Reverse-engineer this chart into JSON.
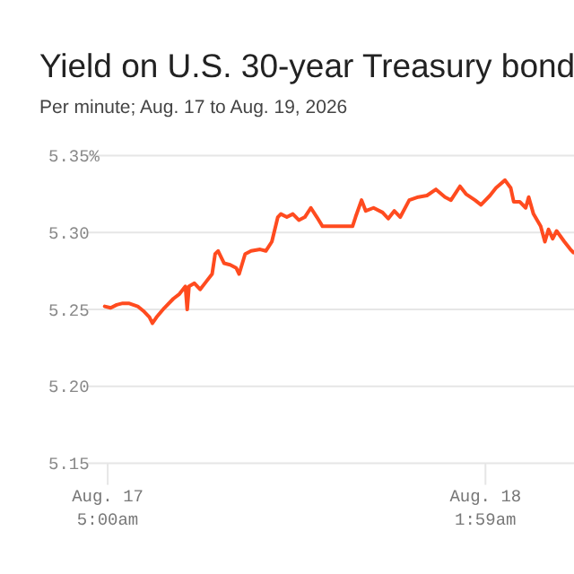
{
  "chart_data": {
    "type": "line",
    "title": "Yield on U.S. 30-year Treasury bond",
    "subtitle": "Per minute; Aug. 17 to Aug. 19, 2026",
    "xlim": [
      "2026-08-17T03:54",
      "2026-08-18T06:54"
    ],
    "xticks": [
      {
        "value": "2026-08-17T05:00",
        "label": "Aug. 17\n5:00am"
      },
      {
        "value": "2026-08-18T01:59",
        "label": "Aug. 18\n1:59am"
      }
    ],
    "ylim": [
      5.15,
      5.35
    ],
    "yticks": [
      {
        "value": 5.15,
        "label": "5.15"
      },
      {
        "value": 5.2,
        "label": "5.20"
      },
      {
        "value": 5.25,
        "label": "5.25"
      },
      {
        "value": 5.3,
        "label": "5.30"
      },
      {
        "value": 5.35,
        "label": "5.35%"
      }
    ],
    "grid": "y",
    "marker": "none",
    "line_style": "solid",
    "series": [
      {
        "color": "#ff4b1f",
        "x": [
          "2026-08-17T04:50",
          "2026-08-17T05:10",
          "2026-08-17T05:30",
          "2026-08-17T05:50",
          "2026-08-17T06:10",
          "2026-08-17T06:40",
          "2026-08-17T06:59",
          "2026-08-17T07:19",
          "2026-08-17T07:29",
          "2026-08-17T07:43",
          "2026-08-17T08:09",
          "2026-08-17T08:39",
          "2026-08-17T08:59",
          "2026-08-17T09:19",
          "2026-08-17T09:25",
          "2026-08-17T09:31",
          "2026-08-17T09:49",
          "2026-08-17T10:08",
          "2026-08-17T10:28",
          "2026-08-17T10:48",
          "2026-08-17T10:58",
          "2026-08-17T11:08",
          "2026-08-17T11:28",
          "2026-08-17T11:48",
          "2026-08-17T12:08",
          "2026-08-17T12:18",
          "2026-08-17T12:38",
          "2026-08-17T12:58",
          "2026-08-17T13:28",
          "2026-08-17T13:47",
          "2026-08-17T14:07",
          "2026-08-17T14:27",
          "2026-08-17T14:37",
          "2026-08-17T14:57",
          "2026-08-17T15:17",
          "2026-08-17T15:37",
          "2026-08-17T15:57",
          "2026-08-17T16:17",
          "2026-08-17T16:37",
          "2026-08-17T16:56",
          "2026-08-17T18:36",
          "2026-08-17T18:46",
          "2026-08-17T19:06",
          "2026-08-17T19:20",
          "2026-08-17T19:46",
          "2026-08-17T20:16",
          "2026-08-17T20:35",
          "2026-08-17T20:55",
          "2026-08-17T21:15",
          "2026-08-17T21:45",
          "2026-08-17T22:15",
          "2026-08-17T22:44",
          "2026-08-17T23:14",
          "2026-08-17T23:44",
          "2026-08-18T00:04",
          "2026-08-18T00:34",
          "2026-08-18T00:54",
          "2026-08-18T01:24",
          "2026-08-18T01:44",
          "2026-08-18T02:14",
          "2026-08-18T02:34",
          "2026-08-18T03:04",
          "2026-08-18T03:23",
          "2026-08-18T03:33",
          "2026-08-18T03:53",
          "2026-08-18T04:13",
          "2026-08-18T04:23",
          "2026-08-18T04:39",
          "2026-08-18T05:03",
          "2026-08-18T05:17",
          "2026-08-18T05:29",
          "2026-08-18T05:43",
          "2026-08-18T05:56",
          "2026-08-18T06:22",
          "2026-08-18T06:42",
          "2026-08-18T06:52"
        ],
        "values": [
          5.252,
          5.251,
          5.253,
          5.254,
          5.254,
          5.252,
          5.249,
          5.245,
          5.241,
          5.245,
          5.251,
          5.257,
          5.26,
          5.265,
          5.25,
          5.265,
          5.267,
          5.263,
          5.268,
          5.273,
          5.286,
          5.288,
          5.28,
          5.279,
          5.277,
          5.273,
          5.286,
          5.288,
          5.289,
          5.288,
          5.294,
          5.31,
          5.312,
          5.31,
          5.312,
          5.308,
          5.31,
          5.316,
          5.31,
          5.304,
          5.304,
          5.31,
          5.321,
          5.314,
          5.316,
          5.313,
          5.309,
          5.314,
          5.31,
          5.321,
          5.323,
          5.324,
          5.328,
          5.323,
          5.321,
          5.33,
          5.325,
          5.321,
          5.318,
          5.324,
          5.329,
          5.334,
          5.329,
          5.32,
          5.32,
          5.316,
          5.323,
          5.312,
          5.304,
          5.294,
          5.302,
          5.296,
          5.301,
          5.294,
          5.289,
          5.287
        ]
      }
    ]
  }
}
